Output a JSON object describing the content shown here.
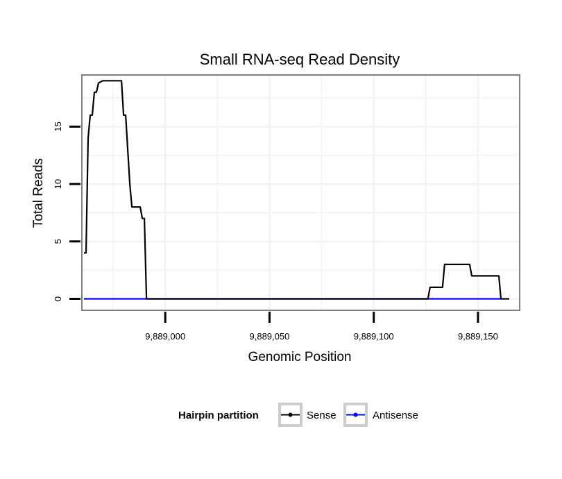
{
  "chart_data": {
    "type": "line",
    "title": "Small RNA-seq Read Density",
    "xlabel": "Genomic Position",
    "ylabel": "Total Reads",
    "xlim": [
      9888960,
      9889170
    ],
    "ylim": [
      -1,
      19.5
    ],
    "x_ticks": [
      9889000,
      9889050,
      9889100,
      9889150
    ],
    "x_tick_labels": [
      "9,889,000",
      "9,889,050",
      "9,889,100",
      "9,889,150"
    ],
    "y_ticks": [
      0,
      5,
      10,
      15
    ],
    "y_tick_labels": [
      "0",
      "5",
      "10",
      "15"
    ],
    "grid": true,
    "legend": {
      "title": "Hairpin partition",
      "position": "bottom",
      "entries": [
        {
          "label": "Sense",
          "color": "#000000"
        },
        {
          "label": "Antisense",
          "color": "#0000ff"
        }
      ]
    },
    "series": [
      {
        "name": "Sense",
        "color": "#000000",
        "x": [
          9888961,
          9888962,
          9888963,
          9888964,
          9888965,
          9888966,
          9888967,
          9888968,
          9888970,
          9888975,
          9888979,
          9888980,
          9888981,
          9888983,
          9888984,
          9888987,
          9888988,
          9888989,
          9888990,
          9888991,
          9889126,
          9889127,
          9889133,
          9889134,
          9889146,
          9889147,
          9889155,
          9889156,
          9889160,
          9889161,
          9889165
        ],
        "y": [
          4,
          4,
          14,
          16,
          16,
          18,
          18,
          18.8,
          19,
          19,
          19,
          16,
          16,
          10,
          8,
          8,
          8,
          7,
          7,
          0,
          0,
          1,
          1,
          3,
          3,
          2,
          2,
          2,
          2,
          0,
          0
        ]
      },
      {
        "name": "Antisense",
        "color": "#0000ff",
        "x": [
          9888961,
          9889161
        ],
        "y": [
          0,
          0
        ]
      }
    ]
  }
}
